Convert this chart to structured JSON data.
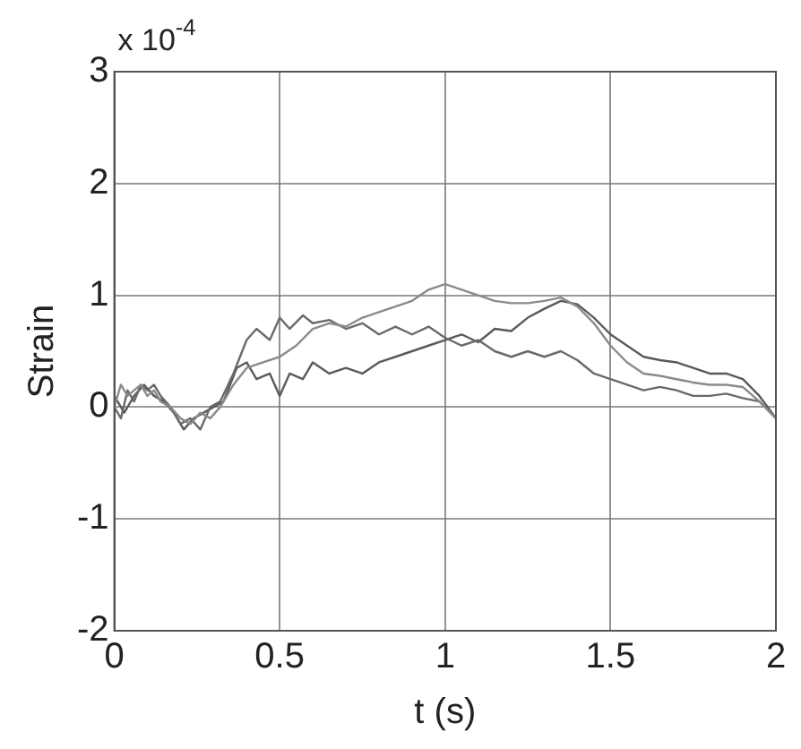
{
  "chart_data": {
    "type": "line",
    "xlabel": "t (s)",
    "ylabel": "Strain",
    "annotations": [
      "x 10$^{-4}$"
    ],
    "xlim": [
      0,
      2
    ],
    "ylim": [
      -2,
      3
    ],
    "xticks": [
      0,
      0.5,
      1,
      1.5,
      2
    ],
    "yticks": [
      -2,
      -1,
      0,
      1,
      2,
      3
    ],
    "grid": true,
    "legend": false,
    "marker": "none",
    "line_style": "solid",
    "series": [
      {
        "color": "#8a8a8a",
        "x": [
          0,
          0.02,
          0.04,
          0.06,
          0.08,
          0.1,
          0.12,
          0.14,
          0.17,
          0.2,
          0.23,
          0.26,
          0.29,
          0.32,
          0.36,
          0.4,
          0.45,
          0.5,
          0.55,
          0.6,
          0.65,
          0.7,
          0.75,
          0.8,
          0.85,
          0.9,
          0.95,
          1,
          1.05,
          1.1,
          1.15,
          1.2,
          1.25,
          1.3,
          1.35,
          1.4,
          1.45,
          1.5,
          1.55,
          1.6,
          1.65,
          1.7,
          1.75,
          1.8,
          1.85,
          1.9,
          1.95,
          2
        ],
        "values": [
          0,
          0.2,
          0.1,
          0.15,
          0.2,
          0.1,
          0.15,
          0.05,
          0,
          -0.1,
          -0.15,
          -0.05,
          -0.1,
          0,
          0.2,
          0.35,
          0.4,
          0.45,
          0.55,
          0.7,
          0.75,
          0.72,
          0.8,
          0.85,
          0.9,
          0.95,
          1.05,
          1.1,
          1.05,
          1,
          0.95,
          0.93,
          0.93,
          0.95,
          0.98,
          0.9,
          0.75,
          0.55,
          0.4,
          0.3,
          0.28,
          0.25,
          0.22,
          0.2,
          0.2,
          0.18,
          0.05,
          -0.1
        ]
      },
      {
        "color": "#6a6a6a",
        "x": [
          0,
          0.02,
          0.04,
          0.06,
          0.08,
          0.1,
          0.12,
          0.14,
          0.17,
          0.2,
          0.23,
          0.26,
          0.29,
          0.32,
          0.36,
          0.4,
          0.43,
          0.47,
          0.5,
          0.53,
          0.57,
          0.6,
          0.65,
          0.7,
          0.75,
          0.8,
          0.85,
          0.9,
          0.95,
          1,
          1.05,
          1.1,
          1.15,
          1.2,
          1.25,
          1.3,
          1.35,
          1.4,
          1.45,
          1.5,
          1.55,
          1.6,
          1.65,
          1.7,
          1.75,
          1.8,
          1.85,
          1.9,
          1.95,
          2
        ],
        "values": [
          0,
          -0.1,
          0.15,
          0.05,
          0.2,
          0.15,
          0.2,
          0.1,
          0,
          -0.15,
          -0.1,
          -0.2,
          0,
          0.05,
          0.3,
          0.6,
          0.7,
          0.6,
          0.8,
          0.7,
          0.82,
          0.75,
          0.78,
          0.7,
          0.75,
          0.65,
          0.72,
          0.65,
          0.72,
          0.62,
          0.55,
          0.6,
          0.5,
          0.45,
          0.5,
          0.45,
          0.5,
          0.42,
          0.3,
          0.25,
          0.2,
          0.15,
          0.18,
          0.15,
          0.1,
          0.1,
          0.12,
          0.08,
          0.05,
          -0.1
        ]
      },
      {
        "color": "#5a5a5a",
        "x": [
          0,
          0.03,
          0.06,
          0.09,
          0.12,
          0.15,
          0.18,
          0.21,
          0.24,
          0.27,
          0.3,
          0.33,
          0.37,
          0.4,
          0.43,
          0.47,
          0.5,
          0.53,
          0.57,
          0.6,
          0.65,
          0.7,
          0.75,
          0.8,
          0.85,
          0.9,
          0.95,
          1,
          1.05,
          1.1,
          1.15,
          1.2,
          1.25,
          1.3,
          1.35,
          1.4,
          1.45,
          1.5,
          1.55,
          1.6,
          1.65,
          1.7,
          1.75,
          1.8,
          1.85,
          1.9,
          1.95,
          2
        ],
        "values": [
          0.1,
          -0.05,
          0.1,
          0.2,
          0.1,
          0.05,
          -0.05,
          -0.2,
          -0.1,
          -0.05,
          0,
          0.05,
          0.35,
          0.4,
          0.25,
          0.3,
          0.1,
          0.3,
          0.25,
          0.4,
          0.3,
          0.35,
          0.3,
          0.4,
          0.45,
          0.5,
          0.55,
          0.6,
          0.65,
          0.58,
          0.7,
          0.68,
          0.8,
          0.88,
          0.95,
          0.92,
          0.8,
          0.65,
          0.55,
          0.45,
          0.42,
          0.4,
          0.35,
          0.3,
          0.3,
          0.25,
          0.1,
          -0.1
        ]
      }
    ]
  }
}
